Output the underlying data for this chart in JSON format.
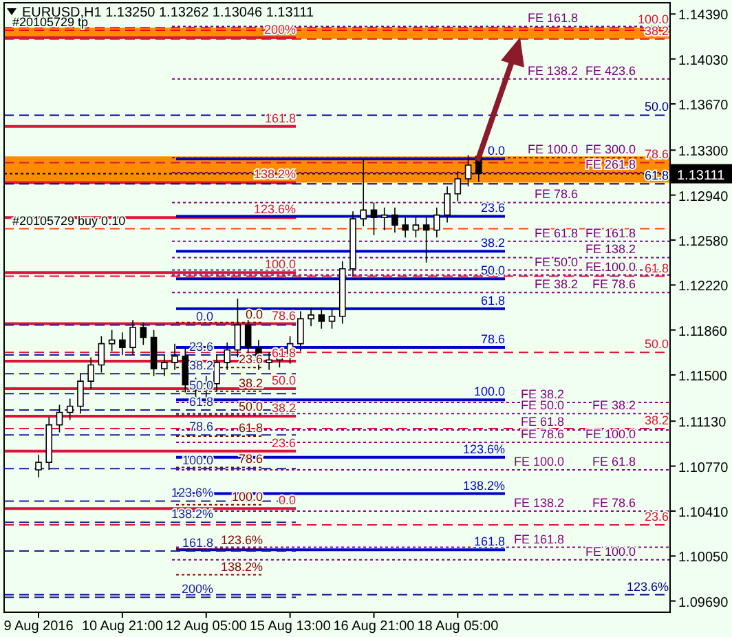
{
  "chart_data": {
    "type": "candlestick",
    "title": "EURUSD,H1  1.13250 1.13262 1.13046 1.13111",
    "categories": [
      "9 Aug 2016",
      null,
      null,
      null,
      null,
      null,
      null,
      null,
      "10 Aug 21:00",
      null,
      null,
      null,
      null,
      null,
      null,
      null,
      "12 Aug 05:00",
      null,
      null,
      null,
      null,
      null,
      null,
      null,
      "15 Aug 13:00",
      null,
      null,
      null,
      null,
      null,
      null,
      null,
      "16 Aug 21:00",
      null,
      null,
      null,
      null,
      null,
      null,
      null,
      "18 Aug 05:00",
      null,
      null,
      null,
      null,
      null,
      null,
      null,
      null,
      null,
      null,
      null,
      null,
      null,
      null,
      null,
      null,
      null,
      null,
      null,
      null
    ],
    "ohlc": [
      [
        1.1074,
        1.1086,
        1.1068,
        1.108
      ],
      [
        1.108,
        1.1116,
        1.1074,
        1.111
      ],
      [
        1.111,
        1.1126,
        1.1104,
        1.112
      ],
      [
        1.112,
        1.1131,
        1.1114,
        1.1125
      ],
      [
        1.1125,
        1.1151,
        1.1119,
        1.1145
      ],
      [
        1.1145,
        1.1164,
        1.1139,
        1.1158
      ],
      [
        1.1158,
        1.1181,
        1.1152,
        1.1175
      ],
      [
        1.1175,
        1.1186,
        1.1169,
        1.1178
      ],
      [
        1.1178,
        1.1184,
        1.1166,
        1.1172
      ],
      [
        1.1172,
        1.1194,
        1.1166,
        1.1188
      ],
      [
        1.1188,
        1.1192,
        1.1174,
        1.118
      ],
      [
        1.118,
        1.1186,
        1.1149,
        1.1155
      ],
      [
        1.1155,
        1.1166,
        1.1149,
        1.116
      ],
      [
        1.116,
        1.1175,
        1.1154,
        1.1165
      ],
      [
        1.1165,
        1.1171,
        1.1136,
        1.1142
      ],
      [
        1.1142,
        1.1148,
        1.1132,
        1.1138
      ],
      [
        1.1138,
        1.1149,
        1.1132,
        1.1143
      ],
      [
        1.1143,
        1.1166,
        1.1137,
        1.116
      ],
      [
        1.116,
        1.1176,
        1.1154,
        1.117
      ],
      [
        1.117,
        1.1211,
        1.1164,
        1.119
      ],
      [
        1.119,
        1.1196,
        1.1166,
        1.1172
      ],
      [
        1.1172,
        1.1178,
        1.1154,
        1.116
      ],
      [
        1.116,
        1.1168,
        1.1154,
        1.1162
      ],
      [
        1.1162,
        1.1171,
        1.1156,
        1.1165
      ],
      [
        1.1165,
        1.1181,
        1.1159,
        1.1175
      ],
      [
        1.1175,
        1.1201,
        1.1169,
        1.1195
      ],
      [
        1.1195,
        1.1204,
        1.1189,
        1.1198
      ],
      [
        1.1198,
        1.1204,
        1.1187,
        1.1193
      ],
      [
        1.1193,
        1.1203,
        1.1187,
        1.1197
      ],
      [
        1.1197,
        1.1241,
        1.1191,
        1.1235
      ],
      [
        1.1235,
        1.1281,
        1.1229,
        1.1275
      ],
      [
        1.1275,
        1.1323,
        1.1269,
        1.1282
      ],
      [
        1.1282,
        1.1288,
        1.1262,
        1.1276
      ],
      [
        1.1276,
        1.1284,
        1.1266,
        1.1278
      ],
      [
        1.1278,
        1.1284,
        1.1264,
        1.127
      ],
      [
        1.127,
        1.1276,
        1.126,
        1.1266
      ],
      [
        1.1266,
        1.1276,
        1.126,
        1.127
      ],
      [
        1.127,
        1.1276,
        1.124,
        1.1266
      ],
      [
        1.1266,
        1.1284,
        1.126,
        1.1278
      ],
      [
        1.1278,
        1.1301,
        1.1272,
        1.1295
      ],
      [
        1.1295,
        1.1313,
        1.1289,
        1.1307
      ],
      [
        1.1307,
        1.1326,
        1.1301,
        1.1318
      ],
      [
        1.1325,
        1.13262,
        1.13046,
        1.13111
      ],
      null,
      null,
      null,
      null,
      null,
      null,
      null,
      null,
      null,
      null,
      null,
      null,
      null,
      null,
      null,
      null,
      null,
      null
    ],
    "ylim": [
      1.096,
      1.1448
    ],
    "yticks": [
      {
        "value": 1.0969,
        "label": "1.09690"
      },
      {
        "value": 1.1005,
        "label": "1.10050"
      },
      {
        "value": 1.1041,
        "label": "1.10410"
      },
      {
        "value": 1.1077,
        "label": "1.10770"
      },
      {
        "value": 1.1113,
        "label": "1.11130"
      },
      {
        "value": 1.115,
        "label": "1.11500"
      },
      {
        "value": 1.1186,
        "label": "1.11860"
      },
      {
        "value": 1.1222,
        "label": "1.12220"
      },
      {
        "value": 1.1258,
        "label": "1.12580"
      },
      {
        "value": 1.1294,
        "label": "1.12940"
      },
      {
        "value": 1.133,
        "label": "1.13300"
      },
      {
        "value": 1.1367,
        "label": "1.13670"
      },
      {
        "value": 1.1403,
        "label": "1.14030"
      },
      {
        "value": 1.1439,
        "label": "1.14390"
      }
    ],
    "bands": [
      {
        "axis": "y",
        "from": 1.1419,
        "to": 1.1428,
        "color": "#ff8c00"
      },
      {
        "axis": "y",
        "from": 1.1304,
        "to": 1.1325,
        "color": "#ff8c00"
      }
    ],
    "ref_lines": [
      {
        "axis": "y",
        "value": 1.142,
        "color": "#dc143c",
        "line_style": "solid"
      },
      {
        "axis": "y",
        "value": 1.1349,
        "color": "#dc143c",
        "line_style": "solid"
      },
      {
        "axis": "y",
        "value": 1.1304,
        "color": "#dc143c",
        "line_style": "solid"
      },
      {
        "axis": "y",
        "value": 1.1276,
        "color": "#dc143c",
        "line_style": "solid"
      },
      {
        "axis": "y",
        "value": 1.1232,
        "color": "#dc143c",
        "line_style": "solid"
      },
      {
        "axis": "y",
        "value": 1.1191,
        "color": "#dc143c",
        "line_style": "solid"
      },
      {
        "axis": "y",
        "value": 1.1161,
        "color": "#dc143c",
        "line_style": "solid"
      },
      {
        "axis": "y",
        "value": 1.1139,
        "color": "#dc143c",
        "line_style": "solid"
      },
      {
        "axis": "y",
        "value": 1.1117,
        "color": "#dc143c",
        "line_style": "solid"
      },
      {
        "axis": "y",
        "value": 1.1089,
        "color": "#dc143c",
        "line_style": "solid"
      },
      {
        "axis": "y",
        "value": 1.1043,
        "color": "#dc143c",
        "line_style": "solid"
      },
      {
        "axis": "y",
        "value": 1.1323,
        "color": "#0000cd",
        "line_style": "solid"
      },
      {
        "axis": "y",
        "value": 1.1277,
        "color": "#0000cd",
        "line_style": "solid"
      },
      {
        "axis": "y",
        "value": 1.1249,
        "color": "#0000cd",
        "line_style": "solid"
      },
      {
        "axis": "y",
        "value": 1.1227,
        "color": "#0000cd",
        "line_style": "solid"
      },
      {
        "axis": "y",
        "value": 1.1203,
        "color": "#0000cd",
        "line_style": "solid"
      },
      {
        "axis": "y",
        "value": 1.1172,
        "color": "#0000cd",
        "line_style": "solid"
      },
      {
        "axis": "y",
        "value": 1.113,
        "color": "#0000cd",
        "line_style": "solid"
      },
      {
        "axis": "y",
        "value": 1.1084,
        "color": "#0000cd",
        "line_style": "solid"
      },
      {
        "axis": "y",
        "value": 1.1055,
        "color": "#0000cd",
        "line_style": "solid"
      },
      {
        "axis": "y",
        "value": 1.101,
        "color": "#0000cd",
        "line_style": "solid"
      },
      {
        "axis": "y",
        "value": 1.119,
        "color": "#1e1e9a",
        "line_style": "dashed"
      },
      {
        "axis": "y",
        "value": 1.1166,
        "color": "#1e1e9a",
        "line_style": "dashed"
      },
      {
        "axis": "y",
        "value": 1.1151,
        "color": "#1e1e9a",
        "line_style": "dashed"
      },
      {
        "axis": "y",
        "value": 1.1135,
        "color": "#1e1e9a",
        "line_style": "dashed"
      },
      {
        "axis": "y",
        "value": 1.1122,
        "color": "#1e1e9a",
        "line_style": "dashed"
      },
      {
        "axis": "y",
        "value": 1.1102,
        "color": "#1e1e9a",
        "line_style": "dashed"
      },
      {
        "axis": "y",
        "value": 1.1075,
        "color": "#1e1e9a",
        "line_style": "dashed"
      },
      {
        "axis": "y",
        "value": 1.1049,
        "color": "#1e1e9a",
        "line_style": "dashed"
      },
      {
        "axis": "y",
        "value": 1.1032,
        "color": "#1e1e9a",
        "line_style": "dashed"
      },
      {
        "axis": "y",
        "value": 1.1009,
        "color": "#1e1e9a",
        "line_style": "dashed"
      },
      {
        "axis": "y",
        "value": 1.0972,
        "color": "#1e1e9a",
        "line_style": "dashed"
      },
      {
        "axis": "y",
        "value": 1.1192,
        "color": "#8b0000",
        "line_style": "dotted"
      },
      {
        "axis": "y",
        "value": 1.1156,
        "color": "#8b0000",
        "line_style": "dotted"
      },
      {
        "axis": "y",
        "value": 1.1137,
        "color": "#8b0000",
        "line_style": "dotted"
      },
      {
        "axis": "y",
        "value": 1.1118,
        "color": "#8b0000",
        "line_style": "dotted"
      },
      {
        "axis": "y",
        "value": 1.1101,
        "color": "#8b0000",
        "line_style": "dotted"
      },
      {
        "axis": "y",
        "value": 1.1076,
        "color": "#8b0000",
        "line_style": "dotted"
      },
      {
        "axis": "y",
        "value": 1.1046,
        "color": "#8b0000",
        "line_style": "dotted"
      },
      {
        "axis": "y",
        "value": 1.1011,
        "color": "#8b0000",
        "line_style": "dotted"
      },
      {
        "axis": "y",
        "value": 1.099,
        "color": "#8b0000",
        "line_style": "dotted"
      },
      {
        "axis": "y",
        "value": 1.1428,
        "color": "#dc143c",
        "line_style": "dashed"
      },
      {
        "axis": "y",
        "value": 1.1419,
        "color": "#dc143c",
        "line_style": "dashed"
      },
      {
        "axis": "y",
        "value": 1.132,
        "color": "#dc143c",
        "line_style": "dashed"
      },
      {
        "axis": "y",
        "value": 1.1229,
        "color": "#dc143c",
        "line_style": "dashed"
      },
      {
        "axis": "y",
        "value": 1.1168,
        "color": "#dc143c",
        "line_style": "dashed"
      },
      {
        "axis": "y",
        "value": 1.1107,
        "color": "#dc143c",
        "line_style": "dashed"
      },
      {
        "axis": "y",
        "value": 1.103,
        "color": "#dc143c",
        "line_style": "dashed"
      },
      {
        "axis": "y",
        "value": 1.1358,
        "color": "#00008b",
        "line_style": "dashed"
      },
      {
        "axis": "y",
        "value": 1.1303,
        "color": "#00008b",
        "line_style": "dashed"
      },
      {
        "axis": "y",
        "value": 1.0974,
        "color": "#00008b",
        "line_style": "dashed"
      },
      {
        "axis": "y",
        "value": 1.1429,
        "color": "#800080",
        "line_style": "dotted"
      },
      {
        "axis": "y",
        "value": 1.1387,
        "color": "#800080",
        "line_style": "dotted"
      },
      {
        "axis": "y",
        "value": 1.1324,
        "color": "#800080",
        "line_style": "dotted"
      },
      {
        "axis": "y",
        "value": 1.1288,
        "color": "#800080",
        "line_style": "dotted"
      },
      {
        "axis": "y",
        "value": 1.1257,
        "color": "#800080",
        "line_style": "dotted"
      },
      {
        "axis": "y",
        "value": 1.1234,
        "color": "#800080",
        "line_style": "dotted"
      },
      {
        "axis": "y",
        "value": 1.1216,
        "color": "#800080",
        "line_style": "dotted"
      },
      {
        "axis": "y",
        "value": 1.1128,
        "color": "#8b008b",
        "line_style": "dotted"
      },
      {
        "axis": "y",
        "value": 1.1119,
        "color": "#8b008b",
        "line_style": "dotted"
      },
      {
        "axis": "y",
        "value": 1.1106,
        "color": "#8b008b",
        "line_style": "dotted"
      },
      {
        "axis": "y",
        "value": 1.1096,
        "color": "#8b008b",
        "line_style": "dotted"
      },
      {
        "axis": "y",
        "value": 1.1074,
        "color": "#8b008b",
        "line_style": "dotted"
      },
      {
        "axis": "y",
        "value": 1.1041,
        "color": "#8b008b",
        "line_style": "dotted"
      },
      {
        "axis": "y",
        "value": 1.1012,
        "color": "#8b008b",
        "line_style": "dotted"
      },
      {
        "axis": "y",
        "value": 1.1312,
        "color": "#7f007f",
        "line_style": "dotted"
      },
      {
        "axis": "y",
        "value": 1.1244,
        "color": "#7f007f",
        "line_style": "dotted"
      },
      {
        "axis": "y",
        "value": 1.123,
        "color": "#7f007f",
        "line_style": "dotted"
      },
      {
        "axis": "y",
        "value": 1.1002,
        "color": "#7f007f",
        "line_style": "dotted"
      },
      {
        "axis": "y",
        "value": 1.1426,
        "color": "#ff0000",
        "line_style": "dashed"
      },
      {
        "axis": "y",
        "value": 1.1267,
        "color": "#ff4500",
        "line_style": "dashed"
      },
      {
        "axis": "y",
        "value": 1.13111,
        "label": "1.13111",
        "color": "#000000",
        "line_style": "dotted"
      }
    ],
    "annotations": [
      {
        "text": "200%",
        "y": 1.142
      },
      {
        "text": "161.8",
        "y": 1.1349
      },
      {
        "text": "138.2%",
        "y": 1.1304
      },
      {
        "text": "123.6%",
        "y": 1.1276
      },
      {
        "text": "100.0",
        "y": 1.1232
      },
      {
        "text": "78.6",
        "y": 1.1191
      },
      {
        "text": "61.8",
        "y": 1.1161
      },
      {
        "text": "50.0",
        "y": 1.1139
      },
      {
        "text": "38.2",
        "y": 1.1117
      },
      {
        "text": "23.6",
        "y": 1.1089
      },
      {
        "text": "0.0",
        "y": 1.1043
      },
      {
        "text": "0.0",
        "y": 1.1323
      },
      {
        "text": "23.6",
        "y": 1.1277
      },
      {
        "text": "38.2",
        "y": 1.1249
      },
      {
        "text": "50.0",
        "y": 1.1227
      },
      {
        "text": "61.8",
        "y": 1.1203
      },
      {
        "text": "78.6",
        "y": 1.1172
      },
      {
        "text": "100.0",
        "y": 1.113
      },
      {
        "text": "123.6%",
        "y": 1.1084
      },
      {
        "text": "138.2%",
        "y": 1.1055
      },
      {
        "text": "161.8",
        "y": 1.101
      },
      {
        "text": "0.0",
        "y": 1.119
      },
      {
        "text": "23.6",
        "y": 1.1166
      },
      {
        "text": "38.2",
        "y": 1.1151
      },
      {
        "text": "50.0",
        "y": 1.1135
      },
      {
        "text": "61.8",
        "y": 1.1122
      },
      {
        "text": "78.6",
        "y": 1.1102
      },
      {
        "text": "100.0",
        "y": 1.1075
      },
      {
        "text": "123.6%",
        "y": 1.1049
      },
      {
        "text": "138.2%",
        "y": 1.1032
      },
      {
        "text": "161.8",
        "y": 1.1009
      },
      {
        "text": "200%",
        "y": 1.0972
      },
      {
        "text": "0.0",
        "y": 1.1192
      },
      {
        "text": "23.6",
        "y": 1.1156
      },
      {
        "text": "38.2",
        "y": 1.1137
      },
      {
        "text": "50.0",
        "y": 1.1118
      },
      {
        "text": "61.8",
        "y": 1.1101
      },
      {
        "text": "78.6",
        "y": 1.1076
      },
      {
        "text": "100.0",
        "y": 1.1046
      },
      {
        "text": "123.6%",
        "y": 1.1011
      },
      {
        "text": "138.2%",
        "y": 1.099
      },
      {
        "text": "100.0",
        "y": 1.1428
      },
      {
        "text": "38.2",
        "y": 1.1419
      },
      {
        "text": "78.6",
        "y": 1.132
      },
      {
        "text": "61.8",
        "y": 1.1229
      },
      {
        "text": "50.0",
        "y": 1.1168
      },
      {
        "text": "38.2",
        "y": 1.1107
      },
      {
        "text": "23.6",
        "y": 1.103
      },
      {
        "text": "50.0",
        "y": 1.1358
      },
      {
        "text": "61.8",
        "y": 1.1303
      },
      {
        "text": "123.6%",
        "y": 1.0974
      },
      {
        "text": "FE 161.8",
        "y": 1.1429
      },
      {
        "text": "FE 138.2",
        "y": 1.1387
      },
      {
        "text": "FE 423.6",
        "y": 1.1387
      },
      {
        "text": "FE 100.0",
        "y": 1.1324
      },
      {
        "text": "FE 300.0",
        "y": 1.1324
      },
      {
        "text": "FE 78.6",
        "y": 1.1288
      },
      {
        "text": "FE 61.8",
        "y": 1.1257
      },
      {
        "text": "FE 161.8",
        "y": 1.1257
      },
      {
        "text": "FE 50.0",
        "y": 1.1234
      },
      {
        "text": "FE 38.2",
        "y": 1.1216
      },
      {
        "text": "FE 78.6",
        "y": 1.1216
      },
      {
        "text": "FE 38.2",
        "y": 1.1128
      },
      {
        "text": "FE 50.0",
        "y": 1.1119
      },
      {
        "text": "FE 38.2",
        "y": 1.1119
      },
      {
        "text": "FE 61.8",
        "y": 1.1106
      },
      {
        "text": "FE 78.6",
        "y": 1.1096
      },
      {
        "text": "FE 100.0",
        "y": 1.1096
      },
      {
        "text": "FE 100.0",
        "y": 1.1074
      },
      {
        "text": "FE 61.8",
        "y": 1.1074
      },
      {
        "text": "FE 138.2",
        "y": 1.1041
      },
      {
        "text": "FE 78.6",
        "y": 1.1041
      },
      {
        "text": "FE 161.8",
        "y": 1.1012
      },
      {
        "text": "FE 261.8",
        "y": 1.1312
      },
      {
        "text": "FE 138.2",
        "y": 1.1244
      },
      {
        "text": "FE 100.0",
        "y": 1.123
      },
      {
        "text": "FE 100.0",
        "y": 1.1002
      },
      {
        "text": "#20105729 tp",
        "y": 1.1426
      },
      {
        "text": "#20105729 buy 0.10",
        "y": 1.1267
      }
    ]
  }
}
